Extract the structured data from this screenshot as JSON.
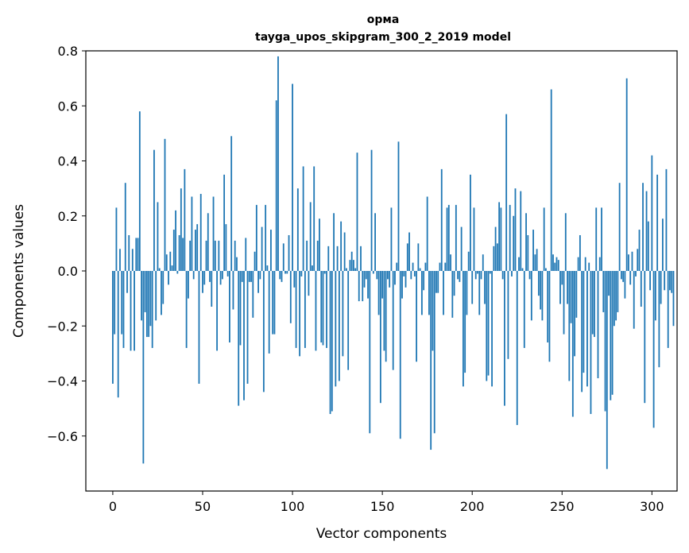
{
  "chart_data": {
    "type": "bar",
    "title": "орма",
    "subtitle": "tayga_upos_skipgram_300_2_2019 model",
    "xlabel": "Vector components",
    "ylabel": "Components values",
    "xlim": [
      -15,
      314
    ],
    "ylim": [
      -0.8,
      0.8
    ],
    "xticks": [
      0,
      50,
      100,
      150,
      200,
      250,
      300
    ],
    "yticks": [
      -0.6,
      -0.4,
      -0.2,
      0.0,
      0.2,
      0.4,
      0.6,
      0.8
    ],
    "ytick_labels": [
      "−0.6",
      "−0.4",
      "−0.2",
      "0.0",
      "0.2",
      "0.4",
      "0.6",
      "0.8"
    ],
    "bar_color": "#1f77b4",
    "values": [
      -0.41,
      -0.23,
      0.23,
      -0.46,
      0.08,
      -0.23,
      -0.28,
      0.32,
      -0.08,
      0.13,
      -0.29,
      0.08,
      -0.29,
      0.12,
      0.12,
      0.58,
      -0.18,
      -0.7,
      -0.15,
      -0.24,
      -0.24,
      -0.2,
      -0.28,
      0.44,
      -0.18,
      0.25,
      0.01,
      -0.16,
      -0.12,
      0.48,
      0.06,
      -0.05,
      0.07,
      0.02,
      0.15,
      0.22,
      -0.01,
      0.13,
      0.3,
      0.12,
      0.37,
      -0.28,
      -0.1,
      0.11,
      0.27,
      -0.03,
      0.15,
      0.17,
      -0.41,
      0.28,
      -0.08,
      -0.05,
      0.11,
      0.21,
      -0.04,
      -0.13,
      0.27,
      0.11,
      -0.29,
      0.11,
      -0.05,
      -0.03,
      0.35,
      0.17,
      -0.02,
      -0.26,
      0.49,
      -0.14,
      0.11,
      0.05,
      -0.49,
      -0.27,
      -0.04,
      -0.47,
      0.12,
      -0.41,
      -0.04,
      -0.04,
      -0.17,
      0.07,
      0.24,
      -0.08,
      -0.03,
      0.16,
      -0.44,
      0.24,
      0.02,
      -0.3,
      0.15,
      -0.23,
      -0.23,
      0.62,
      0.78,
      -0.03,
      -0.04,
      0.1,
      -0.01,
      -0.01,
      0.13,
      -0.19,
      0.68,
      -0.06,
      -0.28,
      0.3,
      -0.31,
      -0.02,
      0.38,
      -0.28,
      0.11,
      -0.09,
      0.25,
      0.02,
      0.38,
      -0.29,
      0.11,
      0.19,
      -0.26,
      -0.27,
      -0.01,
      -0.28,
      0.09,
      -0.52,
      -0.51,
      0.21,
      -0.42,
      0.09,
      -0.4,
      0.18,
      -0.31,
      0.14,
      0.01,
      -0.36,
      0.04,
      0.07,
      0.04,
      0.01,
      0.43,
      -0.11,
      0.09,
      -0.11,
      -0.06,
      -0.03,
      -0.1,
      -0.59,
      0.44,
      -0.01,
      0.21,
      -0.03,
      -0.16,
      -0.48,
      -0.1,
      -0.29,
      -0.33,
      -0.03,
      -0.06,
      0.23,
      -0.36,
      -0.05,
      0.03,
      0.47,
      -0.61,
      -0.1,
      -0.02,
      -0.06,
      0.1,
      0.14,
      -0.03,
      0.03,
      -0.02,
      -0.33,
      0.1,
      0.01,
      -0.16,
      -0.07,
      0.03,
      0.27,
      -0.16,
      -0.65,
      -0.29,
      -0.59,
      -0.08,
      -0.08,
      0.03,
      0.37,
      -0.16,
      0.03,
      0.23,
      0.24,
      0.06,
      -0.17,
      -0.09,
      0.24,
      -0.03,
      -0.04,
      0.16,
      -0.42,
      -0.37,
      -0.16,
      0.07,
      0.35,
      -0.12,
      0.23,
      -0.03,
      -0.01,
      -0.16,
      -0.03,
      0.06,
      -0.12,
      -0.4,
      -0.38,
      -0.01,
      -0.42,
      0.09,
      0.16,
      0.1,
      0.25,
      0.23,
      -0.03,
      -0.49,
      0.57,
      -0.32,
      0.24,
      -0.02,
      0.2,
      0.3,
      -0.56,
      0.05,
      0.29,
      0.01,
      -0.28,
      0.21,
      0.13,
      -0.03,
      -0.18,
      0.15,
      0.06,
      0.08,
      -0.09,
      -0.14,
      -0.18,
      0.23,
      0.01,
      -0.26,
      -0.33,
      0.66,
      0.06,
      0.03,
      0.05,
      0.04,
      -0.12,
      -0.05,
      -0.23,
      0.21,
      -0.12,
      -0.4,
      -0.19,
      -0.53,
      -0.31,
      -0.17,
      0.05,
      0.13,
      -0.44,
      -0.37,
      0.05,
      -0.42,
      0.03,
      -0.52,
      -0.23,
      -0.24,
      0.23,
      -0.39,
      0.05,
      0.23,
      -0.15,
      -0.51,
      -0.72,
      -0.09,
      -0.47,
      -0.45,
      -0.2,
      -0.18,
      -0.15,
      0.32,
      -0.03,
      -0.04,
      -0.1,
      0.7,
      0.06,
      -0.05,
      0.07,
      -0.21,
      -0.02,
      0.08,
      0.15,
      -0.13,
      0.32,
      -0.48,
      0.29,
      0.18,
      -0.07,
      0.42,
      -0.57,
      -0.18,
      0.35,
      -0.35,
      -0.12,
      0.19,
      -0.07,
      0.37,
      -0.28,
      -0.07,
      -0.08,
      -0.2
    ]
  }
}
